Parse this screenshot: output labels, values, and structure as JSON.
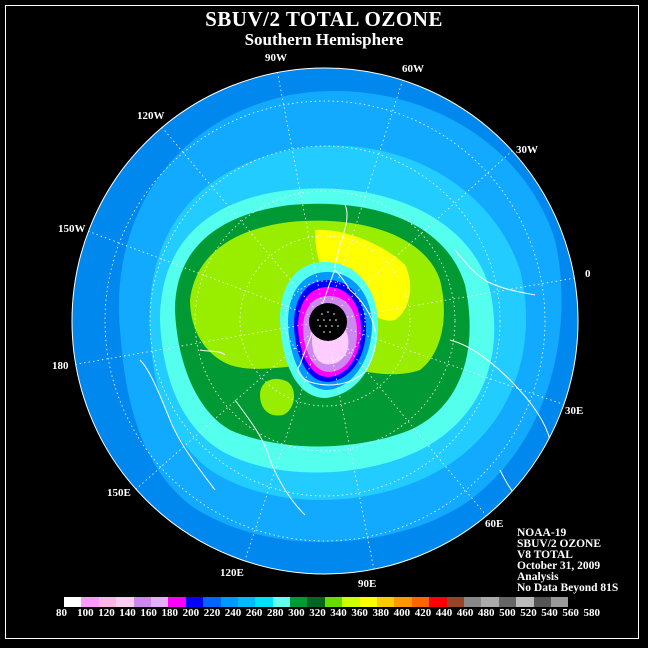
{
  "title": "SBUV/2 TOTAL OZONE",
  "subtitle": "Southern Hemisphere",
  "longitude_labels": [
    {
      "id": "90w",
      "text": "90W"
    },
    {
      "id": "60w",
      "text": "60W"
    },
    {
      "id": "30w",
      "text": "30W"
    },
    {
      "id": "0",
      "text": "0"
    },
    {
      "id": "30e",
      "text": "30E"
    },
    {
      "id": "60e",
      "text": "60E"
    },
    {
      "id": "90e",
      "text": "90E"
    },
    {
      "id": "120e",
      "text": "120E"
    },
    {
      "id": "150e",
      "text": "150E"
    },
    {
      "id": "180",
      "text": "180"
    },
    {
      "id": "150w",
      "text": "150W"
    },
    {
      "id": "120w",
      "text": "120W"
    }
  ],
  "info": {
    "satellite": "NOAA-19",
    "product": "SBUV/2 OZONE",
    "version": "V8 TOTAL",
    "date": "October 31, 2009",
    "type": "Analysis",
    "note": "No Data Beyond 81S"
  },
  "colorbar": {
    "colors": [
      "#ffffff",
      "#ff99ff",
      "#ffb3e6",
      "#ffccf2",
      "#cc88ee",
      "#e0b0ff",
      "#ff00ff",
      "#0000ff",
      "#0066ff",
      "#0099ff",
      "#00bbff",
      "#00e0ff",
      "#66ffee",
      "#009933",
      "#006622",
      "#66dd00",
      "#ccff00",
      "#ffff00",
      "#ffcc00",
      "#ff9900",
      "#ff6600",
      "#ff0000",
      "#994422",
      "#888888",
      "#aaaaaa",
      "#666666",
      "#bbbbbb",
      "#555555",
      "#999999"
    ],
    "labels": [
      "80",
      "100",
      "120",
      "140",
      "160",
      "180",
      "200",
      "220",
      "240",
      "260",
      "280",
      "300",
      "320",
      "340",
      "360",
      "380",
      "400",
      "420",
      "440",
      "460",
      "480",
      "500",
      "520",
      "540",
      "560",
      "580"
    ]
  }
}
